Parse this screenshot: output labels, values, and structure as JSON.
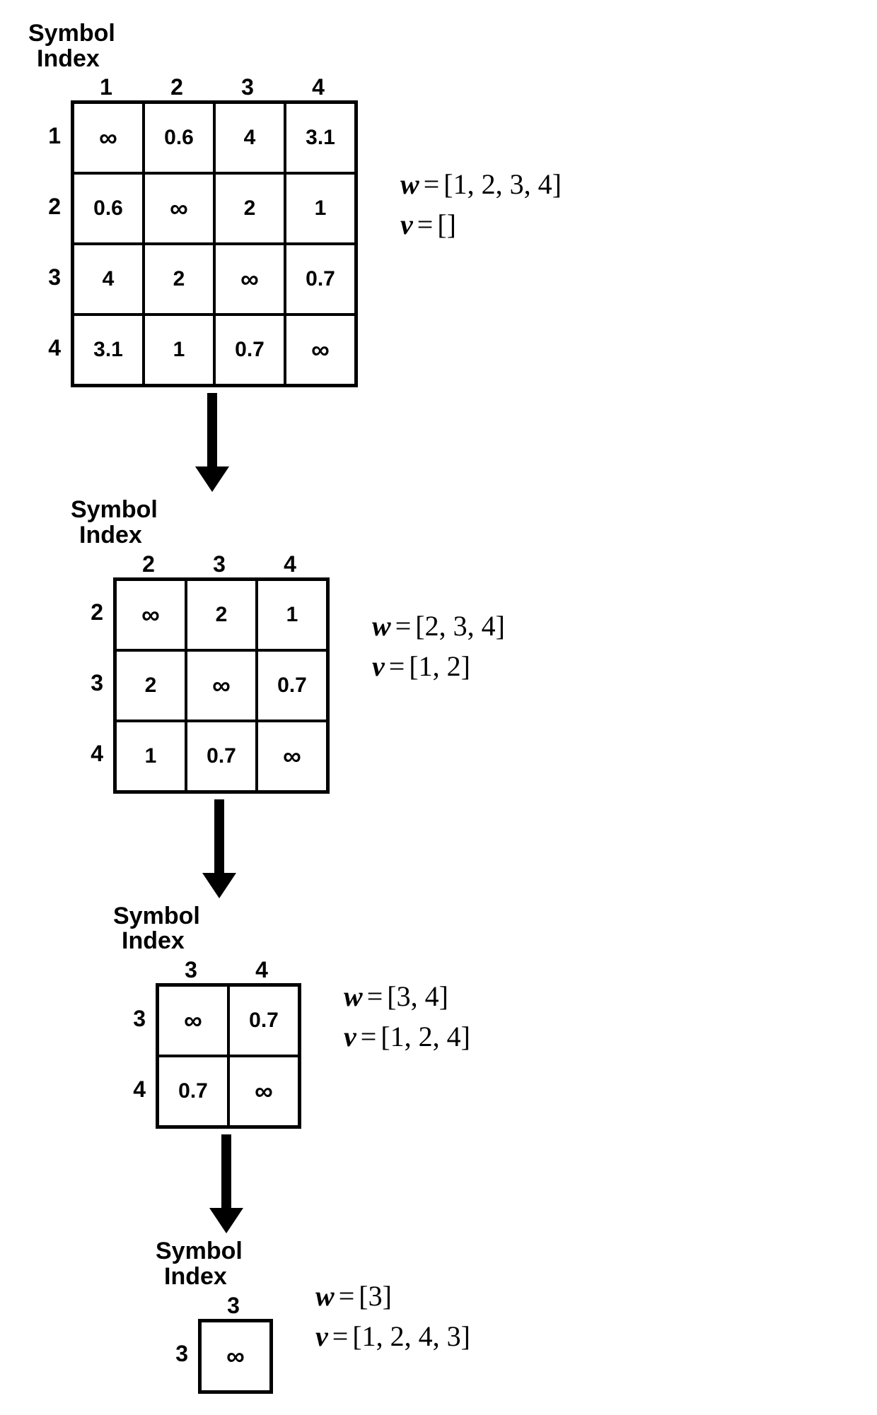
{
  "label_line1": "Symbol",
  "label_line2": "Index",
  "infinity_symbol": "∞",
  "label_fontsize": 34,
  "header_fontsize": 32,
  "cell_fontsize": 30,
  "annotation_fontsize": 40,
  "row_header_width": 60,
  "colors": {
    "background": "#ffffff",
    "text": "#000000",
    "border": "#000000"
  },
  "stages": [
    {
      "cell_size": 100,
      "indent": 0,
      "col_headers": [
        "1",
        "2",
        "3",
        "4"
      ],
      "row_headers": [
        "1",
        "2",
        "3",
        "4"
      ],
      "cells": [
        [
          "∞",
          "0.6",
          "4",
          "3.1"
        ],
        [
          "0.6",
          "∞",
          "2",
          "1"
        ],
        [
          "4",
          "2",
          "∞",
          "0.7"
        ],
        [
          "3.1",
          "1",
          "0.7",
          "∞"
        ]
      ],
      "w": "[1, 2, 3, 4]",
      "v": "[]"
    },
    {
      "cell_size": 100,
      "indent": 60,
      "col_headers": [
        "2",
        "3",
        "4"
      ],
      "row_headers": [
        "2",
        "3",
        "4"
      ],
      "cells": [
        [
          "∞",
          "2",
          "1"
        ],
        [
          "2",
          "∞",
          "0.7"
        ],
        [
          "1",
          "0.7",
          "∞"
        ]
      ],
      "w": "[2, 3, 4]",
      "v": "[1, 2]"
    },
    {
      "cell_size": 100,
      "indent": 120,
      "col_headers": [
        "3",
        "4"
      ],
      "row_headers": [
        "3",
        "4"
      ],
      "cells": [
        [
          "∞",
          "0.7"
        ],
        [
          "0.7",
          "∞"
        ]
      ],
      "w": "[3, 4]",
      "v": "[1, 2, 4]"
    },
    {
      "cell_size": 100,
      "indent": 180,
      "col_headers": [
        "3"
      ],
      "row_headers": [
        "3"
      ],
      "cells": [
        [
          "∞"
        ]
      ],
      "w": "[3]",
      "v": "[1, 2, 4, 3]"
    }
  ],
  "arrow": {
    "length": 140,
    "width": 14,
    "head_width": 48,
    "head_height": 36,
    "color": "#000000"
  }
}
